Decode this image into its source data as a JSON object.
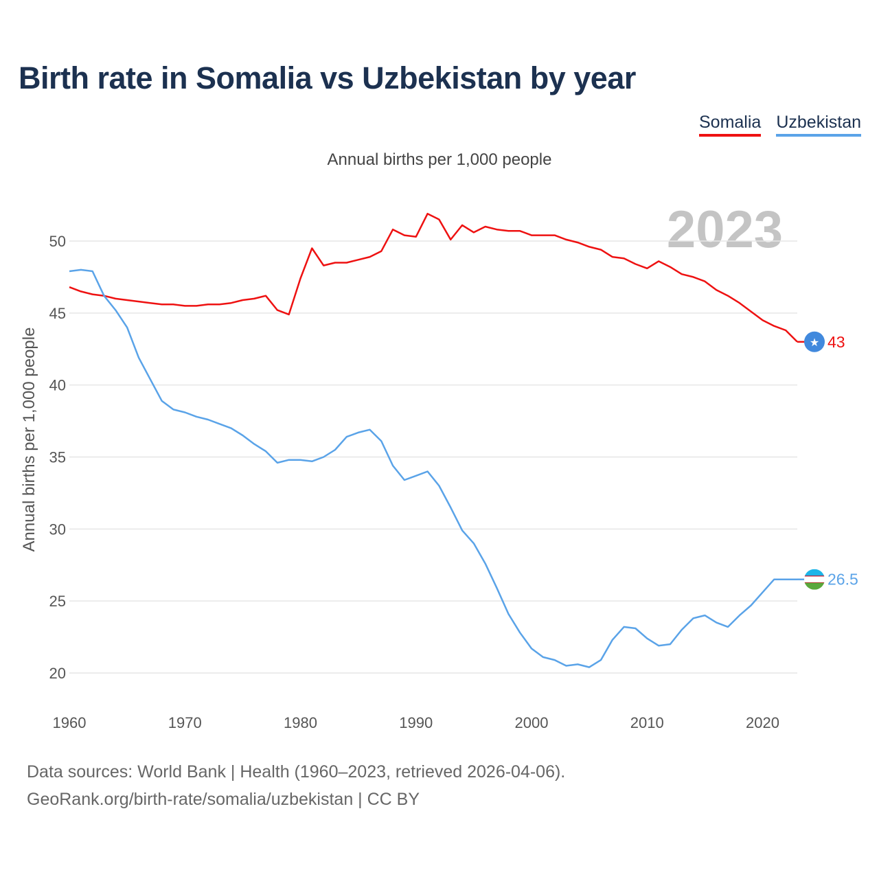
{
  "title": "Birth rate in Somalia vs Uzbekistan by year",
  "legend": [
    {
      "name": "Somalia",
      "color": "#ee1111"
    },
    {
      "name": "Uzbekistan",
      "color": "#5aa3e8"
    }
  ],
  "footer": {
    "line1": "Data sources: World Bank | Health (1960–2023, retrieved 2026-04-06).",
    "line2": "GeoRank.org/birth-rate/somalia/uzbekistan | CC BY"
  },
  "chart_data": {
    "type": "line",
    "title": "Birth rate in Somalia vs Uzbekistan by year",
    "subtitle": "Annual births per 1,000 people",
    "xlabel": "",
    "ylabel": "Annual births per 1,000 people",
    "year_watermark": "2023",
    "xlim": [
      1960,
      2023
    ],
    "ylim": [
      18,
      54
    ],
    "xticks": [
      1960,
      1970,
      1980,
      1990,
      2000,
      2010,
      2020
    ],
    "yticks": [
      20,
      25,
      30,
      35,
      40,
      45,
      50
    ],
    "grid": true,
    "legend_position": "top-right",
    "x": [
      1960,
      1961,
      1962,
      1963,
      1964,
      1965,
      1966,
      1967,
      1968,
      1969,
      1970,
      1971,
      1972,
      1973,
      1974,
      1975,
      1976,
      1977,
      1978,
      1979,
      1980,
      1981,
      1982,
      1983,
      1984,
      1985,
      1986,
      1987,
      1988,
      1989,
      1990,
      1991,
      1992,
      1993,
      1994,
      1995,
      1996,
      1997,
      1998,
      1999,
      2000,
      2001,
      2002,
      2003,
      2004,
      2005,
      2006,
      2007,
      2008,
      2009,
      2010,
      2011,
      2012,
      2013,
      2014,
      2015,
      2016,
      2017,
      2018,
      2019,
      2020,
      2021,
      2022,
      2023
    ],
    "series": [
      {
        "name": "Somalia",
        "color": "#ee1111",
        "end_label": "43",
        "values": [
          46.8,
          46.5,
          46.3,
          46.2,
          46.0,
          45.9,
          45.8,
          45.7,
          45.6,
          45.6,
          45.5,
          45.5,
          45.6,
          45.6,
          45.7,
          45.9,
          46.0,
          46.2,
          45.2,
          44.9,
          47.4,
          49.5,
          48.3,
          48.5,
          48.5,
          48.7,
          48.9,
          49.3,
          50.8,
          50.4,
          50.3,
          51.9,
          51.5,
          50.1,
          51.1,
          50.6,
          51.0,
          50.8,
          50.7,
          50.7,
          50.4,
          50.4,
          50.4,
          50.1,
          49.9,
          49.6,
          49.4,
          48.9,
          48.8,
          48.4,
          48.1,
          48.6,
          48.2,
          47.7,
          47.5,
          47.2,
          46.6,
          46.2,
          45.7,
          45.1,
          44.5,
          44.1,
          43.8,
          43.0
        ]
      },
      {
        "name": "Uzbekistan",
        "color": "#5aa3e8",
        "end_label": "26.5",
        "values": [
          47.9,
          48.0,
          47.9,
          46.2,
          45.2,
          44.0,
          41.9,
          40.4,
          38.9,
          38.3,
          38.1,
          37.8,
          37.6,
          37.3,
          37.0,
          36.5,
          35.9,
          35.4,
          34.6,
          34.8,
          34.8,
          34.7,
          35.0,
          35.5,
          36.4,
          36.7,
          36.9,
          36.1,
          34.4,
          33.4,
          33.7,
          34.0,
          33.0,
          31.5,
          29.9,
          29.0,
          27.6,
          25.9,
          24.1,
          22.8,
          21.7,
          21.1,
          20.9,
          20.5,
          20.6,
          20.4,
          20.9,
          22.3,
          23.2,
          23.1,
          22.4,
          21.9,
          22.0,
          23.0,
          23.8,
          24.0,
          23.5,
          23.2,
          24.0,
          24.7,
          25.6,
          26.5,
          26.5,
          26.5
        ]
      }
    ]
  }
}
